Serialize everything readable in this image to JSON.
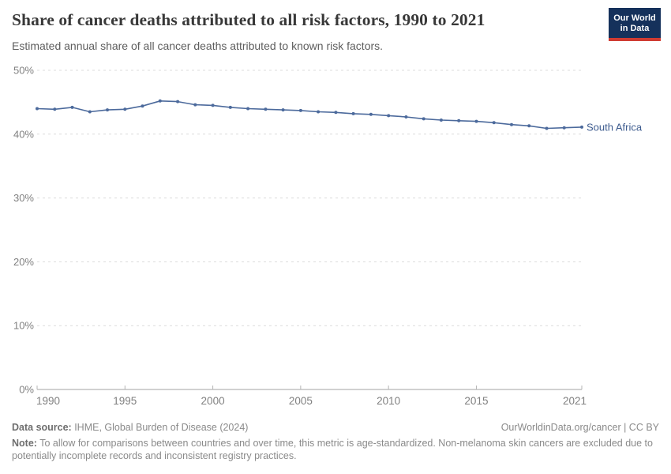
{
  "header": {
    "title": "Share of cancer deaths attributed to all risk factors, 1990 to 2021",
    "subtitle": "Estimated annual share of all cancer deaths attributed to known risk factors.",
    "logo": {
      "line1": "Our World",
      "line2": "in Data",
      "bg_color": "#15315b",
      "bar_color": "#cf3b32"
    }
  },
  "chart_data": {
    "type": "line",
    "title": "Share of cancer deaths attributed to all risk factors, 1990 to 2021",
    "subtitle": "Estimated annual share of all cancer deaths attributed to known risk factors.",
    "xlabel": "",
    "ylabel": "",
    "xlim": [
      1990,
      2021
    ],
    "ylim": [
      0,
      50
    ],
    "grid": "horizontal-dashed",
    "legend_position": "end-of-line-label",
    "y_ticks": [
      0,
      10,
      20,
      30,
      40,
      50
    ],
    "y_tick_suffix": "%",
    "x_ticks": [
      1990,
      1995,
      2000,
      2005,
      2010,
      2015,
      2021
    ],
    "x": [
      1990,
      1991,
      1992,
      1993,
      1994,
      1995,
      1996,
      1997,
      1998,
      1999,
      2000,
      2001,
      2002,
      2003,
      2004,
      2005,
      2006,
      2007,
      2008,
      2009,
      2010,
      2011,
      2012,
      2013,
      2014,
      2015,
      2016,
      2017,
      2018,
      2019,
      2020,
      2021
    ],
    "series": [
      {
        "name": "South Africa",
        "color": "#4c6a9c",
        "label_color": "#3e5c8f",
        "values": [
          44.0,
          43.9,
          44.2,
          43.5,
          43.8,
          43.9,
          44.4,
          45.2,
          45.1,
          44.6,
          44.5,
          44.2,
          44.0,
          43.9,
          43.8,
          43.7,
          43.5,
          43.4,
          43.2,
          43.1,
          42.9,
          42.7,
          42.4,
          42.2,
          42.1,
          42.0,
          41.8,
          41.5,
          41.3,
          40.9,
          41.0,
          41.1
        ]
      }
    ]
  },
  "footer": {
    "datasource_label": "Data source:",
    "datasource_value": " IHME, Global Burden of Disease (2024)",
    "link": "OurWorldinData.org/cancer | CC BY",
    "note_label": "Note:",
    "note_value": " To allow for comparisons between countries and over time, this metric is age-standardized. Non-melanoma skin cancers are excluded due to potentially incomplete records and inconsistent registry practices."
  }
}
